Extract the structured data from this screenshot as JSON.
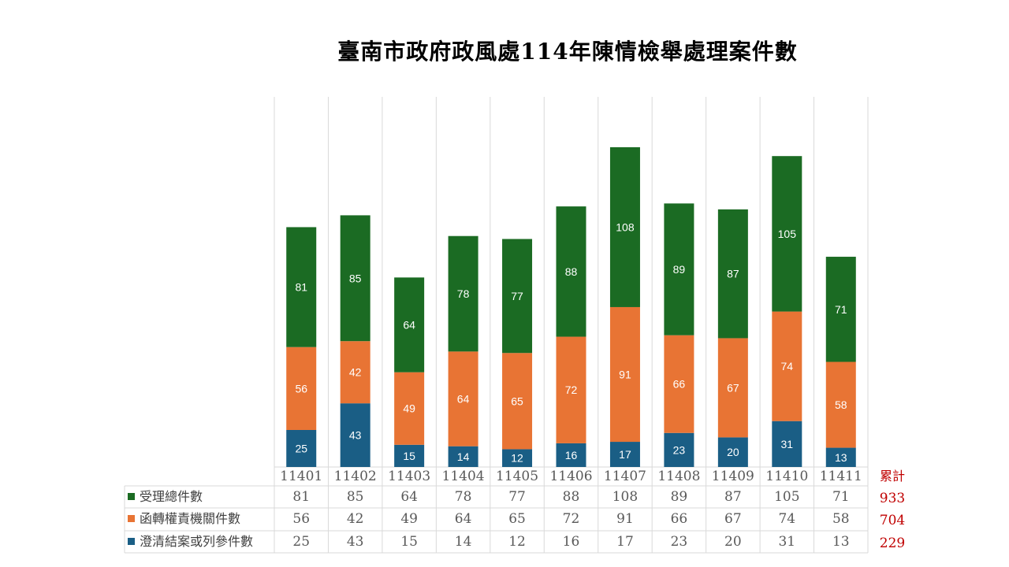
{
  "chart_data": {
    "type": "bar",
    "stacked": true,
    "title": "臺南市政府政風處114年陳情檢舉處理案件數",
    "categories": [
      "11401",
      "11402",
      "11403",
      "11404",
      "11405",
      "11406",
      "11407",
      "11408",
      "11409",
      "11410",
      "11411"
    ],
    "series": [
      {
        "name": "澄清結案或列參件數",
        "color": "#1a5e85",
        "values": [
          25,
          43,
          15,
          14,
          12,
          16,
          17,
          23,
          20,
          31,
          13
        ],
        "total": 229
      },
      {
        "name": "函轉權責機關件數",
        "color": "#e87434",
        "values": [
          56,
          42,
          49,
          64,
          65,
          72,
          91,
          66,
          67,
          74,
          58
        ],
        "total": 704
      },
      {
        "name": "受理總件數",
        "color": "#1b6b23",
        "values": [
          81,
          85,
          64,
          78,
          77,
          88,
          108,
          89,
          87,
          105,
          71
        ],
        "total": 933
      }
    ],
    "table_order": [
      2,
      1,
      0
    ],
    "total_header": "累計",
    "ylim": [
      0,
      250
    ],
    "grid": "vertical",
    "legend": "data-table"
  }
}
